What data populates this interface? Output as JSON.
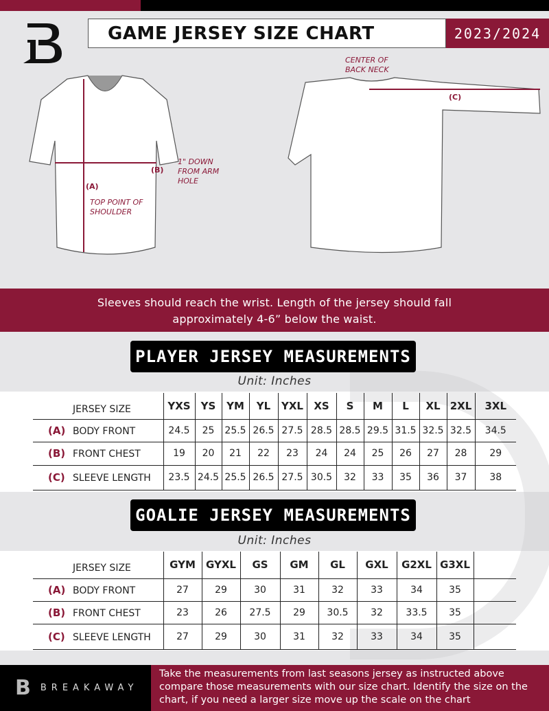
{
  "header": {
    "title": "GAME JERSEY SIZE CHART",
    "season": "2023/2024",
    "logo_letter": "B"
  },
  "diagram": {
    "center_back_neck": "CENTER OF BACK NECK",
    "label_a": "(A)",
    "label_b": "(B)",
    "label_c": "(C)",
    "down_from_arm": "1\" DOWN FROM ARM HOLE",
    "top_point": "TOP POINT OF SHOULDER"
  },
  "band_text": "Sleeves should reach the wrist. Length of the jersey should fall approximately 4-6” below the waist.",
  "player": {
    "title": "PLAYER JERSEY MEASUREMENTS",
    "unit": "Unit: Inches",
    "header_label": "JERSEY SIZE",
    "sizes": [
      "YXS",
      "YS",
      "YM",
      "YL",
      "YXL",
      "XS",
      "S",
      "M",
      "L",
      "XL",
      "2XL",
      "3XL"
    ],
    "rows": [
      {
        "code": "(A)",
        "label": "BODY FRONT",
        "values": [
          "24.5",
          "25",
          "25.5",
          "26.5",
          "27.5",
          "28.5",
          "28.5",
          "29.5",
          "31.5",
          "32.5",
          "32.5",
          "34.5"
        ]
      },
      {
        "code": "(B)",
        "label": "FRONT CHEST",
        "values": [
          "19",
          "20",
          "21",
          "22",
          "23",
          "24",
          "24",
          "25",
          "26",
          "27",
          "28",
          "29"
        ]
      },
      {
        "code": "(C)",
        "label": "SLEEVE LENGTH",
        "values": [
          "23.5",
          "24.5",
          "25.5",
          "26.5",
          "27.5",
          "30.5",
          "32",
          "33",
          "35",
          "36",
          "37",
          "38"
        ]
      }
    ]
  },
  "goalie": {
    "title": "GOALIE JERSEY MEASUREMENTS",
    "unit": "Unit: Inches",
    "header_label": "JERSEY SIZE",
    "sizes": [
      "GYM",
      "GYXL",
      "GS",
      "GM",
      "GL",
      "GXL",
      "G2XL",
      "G3XL",
      ""
    ],
    "rows": [
      {
        "code": "(A)",
        "label": "BODY FRONT",
        "values": [
          "27",
          "29",
          "30",
          "31",
          "32",
          "33",
          "34",
          "35",
          ""
        ]
      },
      {
        "code": "(B)",
        "label": "FRONT CHEST",
        "values": [
          "23",
          "26",
          "27.5",
          "29",
          "30.5",
          "32",
          "33.5",
          "35",
          ""
        ]
      },
      {
        "code": "(C)",
        "label": "SLEEVE LENGTH",
        "values": [
          "27",
          "29",
          "30",
          "31",
          "32",
          "33",
          "34",
          "35",
          ""
        ]
      }
    ]
  },
  "footer": {
    "brand": "BREAKAWAY",
    "text": "Take the measurements from last seasons jersey as instructed above compare those measurements  with our size chart. Identify the size on the chart, if you need a larger size move up the scale on the chart"
  },
  "colors": {
    "accent": "#8a1837",
    "dark": "#000000",
    "background": "#e6e6e8"
  }
}
